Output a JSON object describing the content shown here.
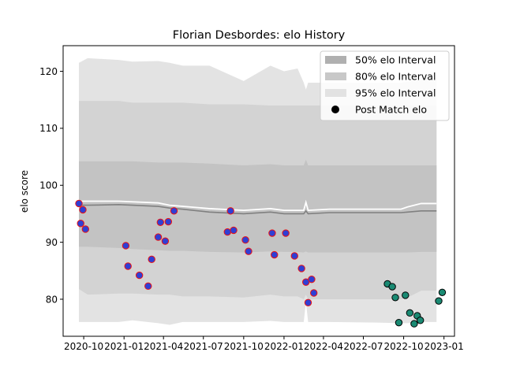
{
  "chart_data": {
    "type": "scatter",
    "title": "Florian Desbordes: elo History",
    "xlabel": "",
    "ylabel": "elo score",
    "xlim": [
      "2020-08-15",
      "2023-01-25"
    ],
    "ylim": [
      73.5,
      124.5
    ],
    "xticks": [
      {
        "date": "2020-10-01",
        "label": "2020-10"
      },
      {
        "date": "2021-01-01",
        "label": "2021-01"
      },
      {
        "date": "2021-04-01",
        "label": "2021-04"
      },
      {
        "date": "2021-07-01",
        "label": "2021-07"
      },
      {
        "date": "2021-10-01",
        "label": "2021-10"
      },
      {
        "date": "2022-01-01",
        "label": "2022-01"
      },
      {
        "date": "2022-04-01",
        "label": "2022-04"
      },
      {
        "date": "2022-07-01",
        "label": "2022-07"
      },
      {
        "date": "2022-10-01",
        "label": "2022-10"
      },
      {
        "date": "2023-01-01",
        "label": "2023-01"
      }
    ],
    "yticks": [
      80,
      90,
      100,
      110,
      120
    ],
    "grid": false,
    "legend_position": "top-right",
    "legend": [
      {
        "label": "50% elo Interval",
        "kind": "patch",
        "color": "#b0b0b0"
      },
      {
        "label": "80% elo Interval",
        "kind": "patch",
        "color": "#c8c8c8"
      },
      {
        "label": "95% elo Interval",
        "kind": "patch",
        "color": "#e2e2e2"
      },
      {
        "label": "Post Match elo",
        "kind": "marker",
        "color": "#000000"
      }
    ],
    "bands": {
      "dates": [
        "2020-09-20",
        "2020-10-10",
        "2020-12-20",
        "2021-01-20",
        "2021-03-20",
        "2021-04-15",
        "2021-05-15",
        "2021-07-15",
        "2021-10-01",
        "2021-12-01",
        "2022-01-01",
        "2022-02-01",
        "2022-02-15",
        "2022-02-20",
        "2022-02-25",
        "2022-04-15",
        "2022-08-01",
        "2022-09-25",
        "2022-10-10",
        "2022-11-10",
        "2022-12-15"
      ],
      "p95_upper": [
        121.5,
        122.3,
        122.0,
        121.7,
        121.8,
        121.5,
        121.0,
        121.0,
        118.3,
        121.0,
        120.0,
        120.5,
        118.0,
        116.8,
        118.0,
        118.0,
        118.0,
        118.0,
        118.2,
        118.5,
        118.5
      ],
      "p80_upper": [
        114.8,
        114.8,
        114.8,
        114.5,
        114.5,
        114.5,
        114.5,
        114.2,
        114.2,
        114.0,
        114.0,
        114.0,
        114.0,
        114.0,
        114.0,
        114.0,
        114.0,
        114.0,
        114.0,
        114.0,
        114.0
      ],
      "p50_upper": [
        104.2,
        104.2,
        104.2,
        104.2,
        104.0,
        104.0,
        104.0,
        103.8,
        103.5,
        103.7,
        103.5,
        103.5,
        103.5,
        104.5,
        103.5,
        103.5,
        103.5,
        103.5,
        103.5,
        103.5,
        103.5
      ],
      "mean": [
        96.5,
        96.5,
        96.6,
        96.5,
        96.3,
        96.0,
        95.8,
        95.3,
        95.0,
        95.3,
        95.0,
        95.0,
        95.0,
        95.5,
        95.0,
        95.2,
        95.2,
        95.2,
        95.3,
        95.5,
        95.5
      ],
      "p50_lower": [
        89.2,
        89.2,
        89.0,
        88.8,
        88.6,
        88.5,
        88.5,
        88.3,
        88.2,
        88.4,
        88.3,
        88.3,
        88.2,
        88.4,
        88.2,
        88.2,
        88.2,
        88.2,
        88.2,
        88.3,
        88.3
      ],
      "p80_lower": [
        81.8,
        80.8,
        81.0,
        81.0,
        80.8,
        80.8,
        80.5,
        80.5,
        80.3,
        80.8,
        80.5,
        80.5,
        80.0,
        80.8,
        80.0,
        80.0,
        80.0,
        80.0,
        80.3,
        81.5,
        81.5
      ],
      "p95_lower": [
        76.0,
        76.0,
        76.0,
        76.3,
        75.8,
        75.5,
        76.0,
        76.0,
        76.0,
        76.2,
        76.0,
        76.0,
        76.0,
        79.5,
        76.0,
        76.0,
        75.9,
        75.8,
        75.8,
        76.0,
        76.0
      ],
      "upper_line": [
        97.2,
        97.2,
        97.2,
        97.1,
        96.9,
        96.5,
        96.3,
        95.9,
        95.6,
        95.9,
        95.6,
        95.6,
        95.6,
        97.0,
        95.6,
        95.8,
        95.8,
        95.8,
        96.2,
        96.8,
        96.8
      ]
    },
    "series": [
      {
        "name": "Post Match elo",
        "style": "blue-red",
        "points": [
          {
            "x": "2020-09-20",
            "y": 96.8
          },
          {
            "x": "2020-09-24",
            "y": 93.3
          },
          {
            "x": "2020-09-29",
            "y": 95.7
          },
          {
            "x": "2020-10-05",
            "y": 92.3
          },
          {
            "x": "2021-01-05",
            "y": 89.4
          },
          {
            "x": "2021-01-10",
            "y": 85.8
          },
          {
            "x": "2021-02-05",
            "y": 84.2
          },
          {
            "x": "2021-02-25",
            "y": 82.3
          },
          {
            "x": "2021-03-05",
            "y": 87.0
          },
          {
            "x": "2021-03-20",
            "y": 90.9
          },
          {
            "x": "2021-03-25",
            "y": 93.5
          },
          {
            "x": "2021-04-05",
            "y": 90.2
          },
          {
            "x": "2021-04-12",
            "y": 93.6
          },
          {
            "x": "2021-04-25",
            "y": 95.5
          },
          {
            "x": "2021-08-25",
            "y": 91.8
          },
          {
            "x": "2021-09-01",
            "y": 95.5
          },
          {
            "x": "2021-09-08",
            "y": 92.1
          },
          {
            "x": "2021-10-05",
            "y": 90.4
          },
          {
            "x": "2021-10-12",
            "y": 88.4
          },
          {
            "x": "2021-12-05",
            "y": 91.6
          },
          {
            "x": "2021-12-10",
            "y": 87.8
          },
          {
            "x": "2022-01-05",
            "y": 91.6
          },
          {
            "x": "2022-01-25",
            "y": 87.6
          },
          {
            "x": "2022-02-10",
            "y": 85.4
          },
          {
            "x": "2022-02-20",
            "y": 83.0
          },
          {
            "x": "2022-02-25",
            "y": 79.4
          },
          {
            "x": "2022-03-05",
            "y": 83.5
          },
          {
            "x": "2022-03-10",
            "y": 81.1
          }
        ]
      },
      {
        "name": "",
        "style": "teal",
        "points": [
          {
            "x": "2022-08-25",
            "y": 82.7
          },
          {
            "x": "2022-09-05",
            "y": 82.2
          },
          {
            "x": "2022-09-12",
            "y": 80.3
          },
          {
            "x": "2022-09-20",
            "y": 75.9
          },
          {
            "x": "2022-10-05",
            "y": 80.7
          },
          {
            "x": "2022-10-15",
            "y": 77.6
          },
          {
            "x": "2022-10-25",
            "y": 75.7
          },
          {
            "x": "2022-11-01",
            "y": 77.1
          },
          {
            "x": "2022-11-08",
            "y": 76.3
          },
          {
            "x": "2022-12-20",
            "y": 79.7
          },
          {
            "x": "2022-12-28",
            "y": 81.2
          }
        ]
      }
    ]
  }
}
